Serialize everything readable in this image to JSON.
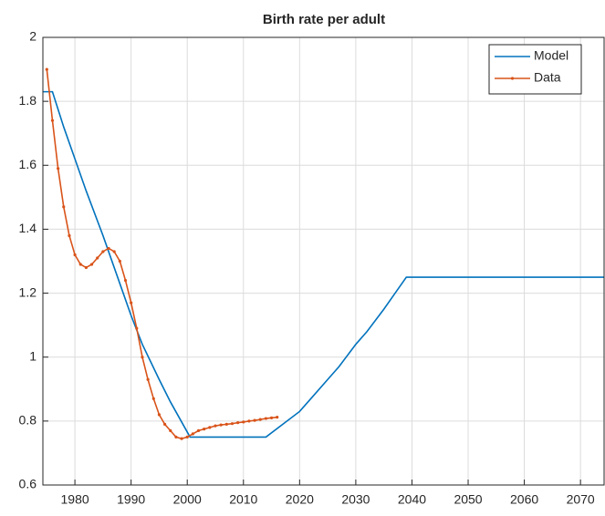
{
  "chart_data": {
    "type": "line",
    "title": "Birth rate per adult",
    "xlim": [
      1974.3,
      2074.2
    ],
    "xticks": [
      1980,
      1990,
      2000,
      2010,
      2020,
      2030,
      2040,
      2050,
      2060,
      2070
    ],
    "ylim": [
      0.6,
      2
    ],
    "yticks": [
      0.6,
      0.8,
      1,
      1.2,
      1.4,
      1.6,
      1.8,
      2
    ],
    "grid": true,
    "legend": "northeast",
    "series": [
      {
        "name": "Model",
        "color": "#0072BD",
        "marker": false,
        "x": [
          1974.3,
          1976,
          1978,
          1980,
          1982,
          1985,
          1988,
          1990,
          1992,
          1995,
          1997,
          2000.5,
          2014,
          2017,
          2020,
          2022,
          2025,
          2027,
          2030,
          2032,
          2035,
          2037,
          2039,
          2074.2
        ],
        "values": [
          1.83,
          1.83,
          1.72,
          1.62,
          1.52,
          1.38,
          1.23,
          1.13,
          1.04,
          0.93,
          0.86,
          0.75,
          0.75,
          0.79,
          0.83,
          0.87,
          0.93,
          0.97,
          1.04,
          1.08,
          1.15,
          1.2,
          1.25,
          1.25
        ]
      },
      {
        "name": "Data",
        "color": "#D95319",
        "marker": true,
        "x": [
          1975,
          1976,
          1977,
          1978,
          1979,
          1980,
          1981,
          1982,
          1983,
          1984,
          1985,
          1986,
          1987,
          1988,
          1989,
          1990,
          1991,
          1992,
          1993,
          1994,
          1995,
          1996,
          1997,
          1998,
          1999,
          2000,
          2001,
          2002,
          2003,
          2004,
          2005,
          2006,
          2007,
          2008,
          2009,
          2010,
          2011,
          2012,
          2013,
          2014,
          2015,
          2016
        ],
        "values": [
          1.9,
          1.74,
          1.59,
          1.47,
          1.38,
          1.32,
          1.29,
          1.28,
          1.29,
          1.31,
          1.33,
          1.34,
          1.33,
          1.3,
          1.24,
          1.17,
          1.09,
          1.0,
          0.93,
          0.87,
          0.82,
          0.79,
          0.77,
          0.75,
          0.745,
          0.75,
          0.76,
          0.77,
          0.775,
          0.78,
          0.785,
          0.788,
          0.79,
          0.792,
          0.795,
          0.797,
          0.8,
          0.802,
          0.805,
          0.808,
          0.81,
          0.812
        ]
      }
    ]
  }
}
